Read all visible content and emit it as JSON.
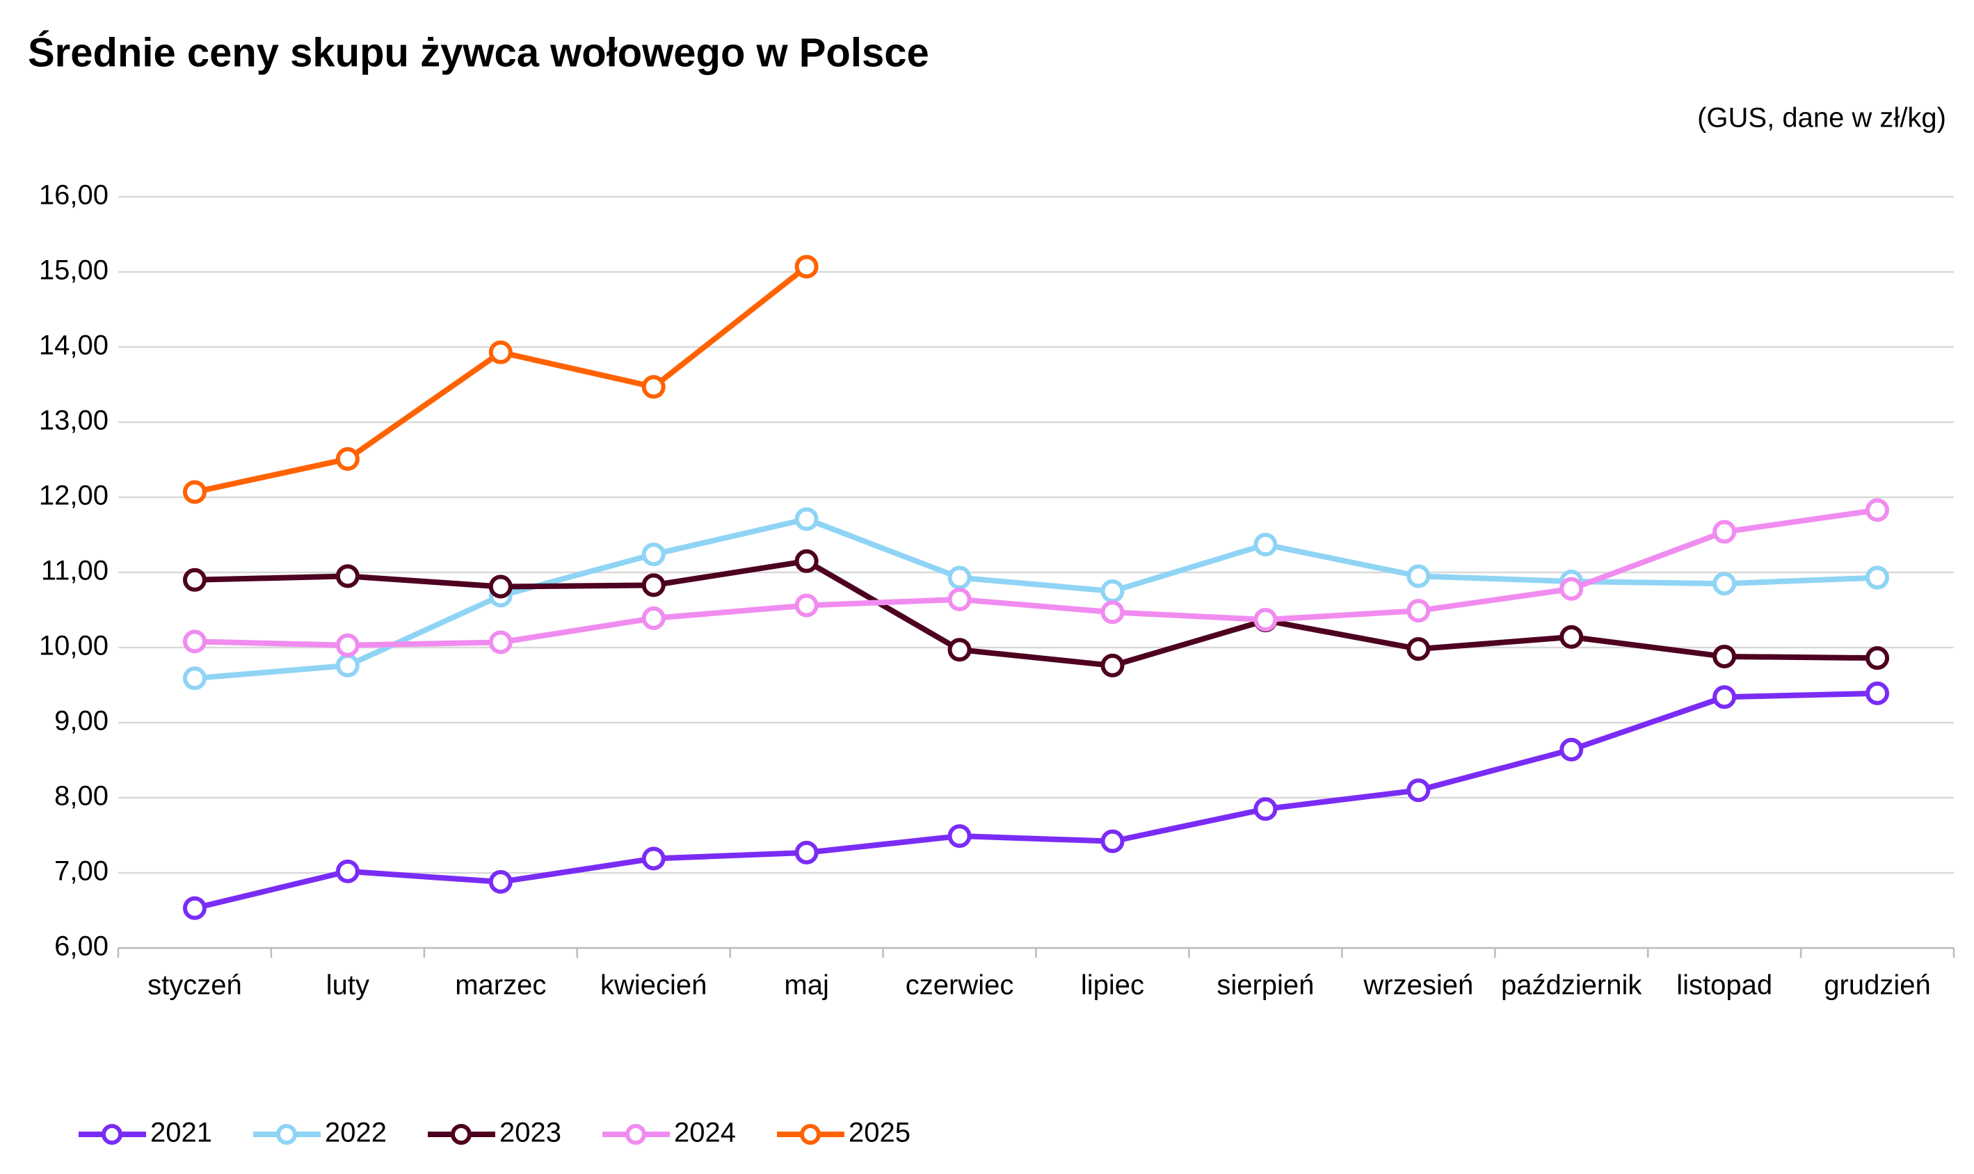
{
  "chart_data": {
    "type": "line",
    "title": "Średnie ceny skupu żywca wołowego w Polsce",
    "subtitle": "(GUS, dane w zł/kg)",
    "categories": [
      "styczeń",
      "luty",
      "marzec",
      "kwiecień",
      "maj",
      "czerwiec",
      "lipiec",
      "sierpień",
      "wrzesień",
      "październik",
      "listopad",
      "grudzień"
    ],
    "series": [
      {
        "name": "2021",
        "color": "#7a2cf5",
        "values": [
          6.53,
          7.02,
          6.88,
          7.19,
          7.27,
          7.49,
          7.42,
          7.85,
          8.1,
          8.64,
          9.34,
          9.39
        ]
      },
      {
        "name": "2022",
        "color": "#8fd4f5",
        "values": [
          9.59,
          9.76,
          10.69,
          11.24,
          11.71,
          10.93,
          10.75,
          11.37,
          10.95,
          10.88,
          10.85,
          10.93
        ]
      },
      {
        "name": "2023",
        "color": "#4d0020",
        "values": [
          10.9,
          10.95,
          10.81,
          10.83,
          11.15,
          9.97,
          9.76,
          10.36,
          9.98,
          10.14,
          9.88,
          9.86
        ]
      },
      {
        "name": "2024",
        "color": "#f08cf0",
        "values": [
          10.08,
          10.03,
          10.07,
          10.39,
          10.56,
          10.64,
          10.47,
          10.37,
          10.49,
          10.78,
          11.54,
          11.83
        ]
      },
      {
        "name": "2025",
        "color": "#ff6200",
        "values": [
          12.07,
          12.51,
          13.93,
          13.47,
          15.07,
          null,
          null,
          null,
          null,
          null,
          null,
          null
        ]
      }
    ],
    "ylim": [
      6,
      16
    ],
    "yticks": [
      {
        "value": 6,
        "label": "6,00"
      },
      {
        "value": 7,
        "label": "7,00"
      },
      {
        "value": 8,
        "label": "8,00"
      },
      {
        "value": 9,
        "label": "9,00"
      },
      {
        "value": 10,
        "label": "10,00"
      },
      {
        "value": 11,
        "label": "11,00"
      },
      {
        "value": 12,
        "label": "12,00"
      },
      {
        "value": 13,
        "label": "13,00"
      },
      {
        "value": 14,
        "label": "14,00"
      },
      {
        "value": 15,
        "label": "15,00"
      },
      {
        "value": 16,
        "label": "16,00"
      }
    ],
    "grid": true,
    "legend": "bottom"
  }
}
